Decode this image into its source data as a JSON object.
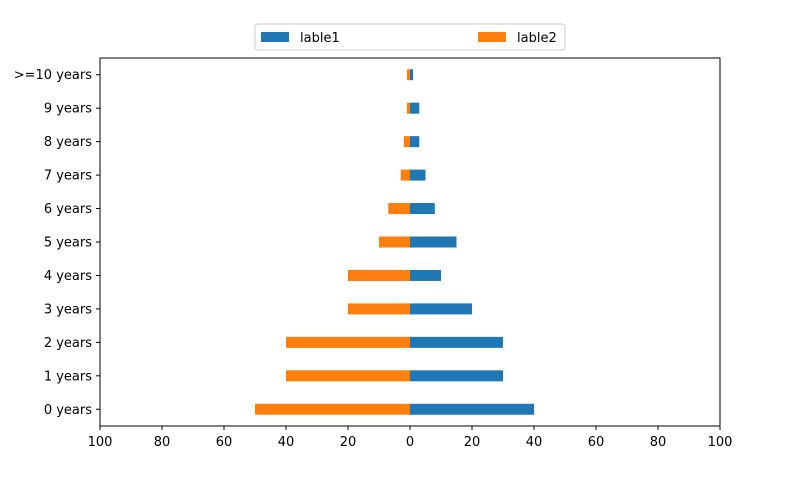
{
  "chart_data": {
    "type": "bar",
    "orientation": "horizontal",
    "diverging": true,
    "categories": [
      "0 years",
      "1 years",
      "2 years",
      "3 years",
      "4 years",
      "5 years",
      "6 years",
      "7 years",
      "8 years",
      "9 years",
      ">=10 years"
    ],
    "series": [
      {
        "name": "lable1",
        "color": "#1f77b4",
        "direction": "right",
        "values": [
          40,
          30,
          30,
          20,
          10,
          15,
          8,
          5,
          3,
          3,
          1
        ]
      },
      {
        "name": "lable2",
        "color": "#ff7f0e",
        "direction": "left",
        "values": [
          50,
          40,
          40,
          20,
          20,
          10,
          7,
          3,
          2,
          1,
          1
        ]
      }
    ],
    "xlim": [
      -100,
      100
    ],
    "xticks": [
      -100,
      -80,
      -60,
      -40,
      -20,
      0,
      20,
      40,
      60,
      80,
      100
    ],
    "xtick_labels": [
      "100",
      "80",
      "60",
      "40",
      "20",
      "0",
      "20",
      "40",
      "60",
      "80",
      "100"
    ],
    "title": "",
    "xlabel": "",
    "ylabel": "",
    "grid": false,
    "legend_position": "top-center"
  }
}
